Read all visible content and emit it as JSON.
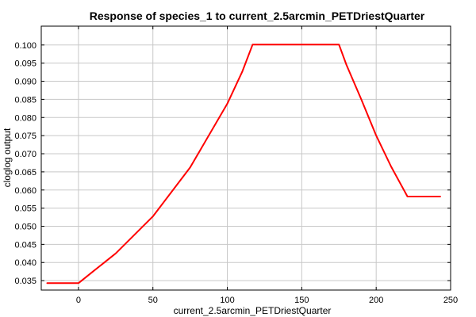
{
  "chart_data": {
    "type": "line",
    "title": "Response of species_1 to current_2.5arcmin_PETDriestQuarter",
    "xlabel": "current_2.5arcmin_PETDriestQuarter",
    "ylabel": "cloglog output",
    "xlim": [
      -25,
      250
    ],
    "ylim": [
      0.0324,
      0.1052
    ],
    "grid": true,
    "x_ticks": [
      0,
      50,
      100,
      150,
      200,
      250
    ],
    "y_ticks": [
      0.035,
      0.04,
      0.045,
      0.05,
      0.055,
      0.06,
      0.065,
      0.07,
      0.075,
      0.08,
      0.085,
      0.09,
      0.095,
      0.1
    ],
    "series": [
      {
        "color": "#ff0000",
        "x": [
          -21,
          0,
          10,
          25,
          50,
          75,
          100,
          110,
          117,
          120,
          150,
          175,
          180,
          190,
          200,
          210,
          221,
          243
        ],
        "y": [
          0.0343,
          0.0343,
          0.0376,
          0.0425,
          0.0527,
          0.0662,
          0.0838,
          0.0926,
          0.1001,
          0.1001,
          0.1001,
          0.1001,
          0.0945,
          0.085,
          0.075,
          0.0665,
          0.0582,
          0.0582
        ]
      }
    ]
  }
}
